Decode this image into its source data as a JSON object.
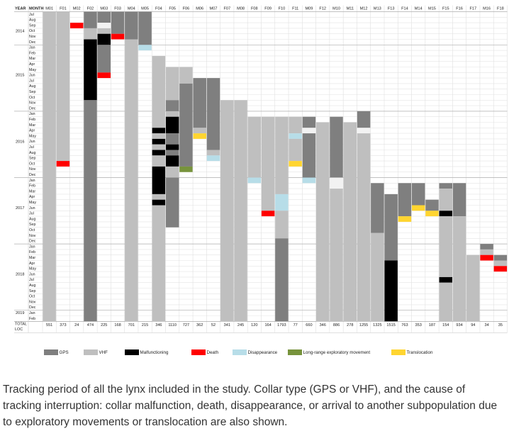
{
  "caption": "Tracking period of all the lynx included in the study. Collar type (GPS or VHF), and the cause of tracking interruption: collar malfunction, death, disappearance, or arrival to another subpopulation due to exploratory movements or translocation are also shown.",
  "chart_data": {
    "type": "table",
    "header": {
      "year": "YEAR",
      "month": "MONTH"
    },
    "animals": [
      "M01",
      "F01",
      "M02",
      "F02",
      "M03",
      "F03",
      "M04",
      "M05",
      "F04",
      "F05",
      "F06",
      "M06",
      "M07",
      "F07",
      "M08",
      "F08",
      "F09",
      "F10",
      "F11",
      "M09",
      "F12",
      "M10",
      "M11",
      "M12",
      "M13",
      "F13",
      "F14",
      "M14",
      "M15",
      "F15",
      "F16",
      "F17",
      "M16",
      "F18"
    ],
    "totals": [
      "551",
      "373",
      "24",
      "474",
      "225",
      "168",
      "701",
      "215",
      "346",
      "1110",
      "727",
      "362",
      "52",
      "341",
      "245",
      "120",
      "164",
      "1793",
      "77",
      "660",
      "346",
      "886",
      "278",
      "1255",
      "1325",
      "1515",
      "763",
      "353",
      "187",
      "154",
      "934",
      "94",
      "34",
      "35"
    ],
    "total_label": "TOTAL",
    "loc_label": "LOC",
    "months": [
      {
        "y": "",
        "m": "Jul"
      },
      {
        "y": "",
        "m": "Aug"
      },
      {
        "y": "",
        "m": "Sep"
      },
      {
        "y": "2014",
        "m": "Oct"
      },
      {
        "y": "",
        "m": "Nov"
      },
      {
        "y": "",
        "m": "Dec"
      },
      {
        "y": "",
        "m": "Jan"
      },
      {
        "y": "",
        "m": "Feb"
      },
      {
        "y": "",
        "m": "Mar"
      },
      {
        "y": "",
        "m": "Apr"
      },
      {
        "y": "",
        "m": "May"
      },
      {
        "y": "2015",
        "m": "Jun"
      },
      {
        "y": "",
        "m": "Jul"
      },
      {
        "y": "",
        "m": "Aug"
      },
      {
        "y": "",
        "m": "Sep"
      },
      {
        "y": "",
        "m": "Oct"
      },
      {
        "y": "",
        "m": "Nov"
      },
      {
        "y": "",
        "m": "Dec"
      },
      {
        "y": "",
        "m": "Jan"
      },
      {
        "y": "",
        "m": "Feb"
      },
      {
        "y": "",
        "m": "Mar"
      },
      {
        "y": "",
        "m": "Apr"
      },
      {
        "y": "",
        "m": "May"
      },
      {
        "y": "2016",
        "m": "Jun"
      },
      {
        "y": "",
        "m": "Jul"
      },
      {
        "y": "",
        "m": "Aug"
      },
      {
        "y": "",
        "m": "Sep"
      },
      {
        "y": "",
        "m": "Oct"
      },
      {
        "y": "",
        "m": "Nov"
      },
      {
        "y": "",
        "m": "Dec"
      },
      {
        "y": "",
        "m": "Jan"
      },
      {
        "y": "",
        "m": "Feb"
      },
      {
        "y": "",
        "m": "Mar"
      },
      {
        "y": "",
        "m": "Apr"
      },
      {
        "y": "",
        "m": "May"
      },
      {
        "y": "2017",
        "m": "Jun"
      },
      {
        "y": "",
        "m": "Jul"
      },
      {
        "y": "",
        "m": "Aug"
      },
      {
        "y": "",
        "m": "Sep"
      },
      {
        "y": "",
        "m": "Oct"
      },
      {
        "y": "",
        "m": "Nov"
      },
      {
        "y": "",
        "m": "Dec"
      },
      {
        "y": "",
        "m": "Jan"
      },
      {
        "y": "",
        "m": "Feb"
      },
      {
        "y": "",
        "m": "Mar"
      },
      {
        "y": "",
        "m": "Apr"
      },
      {
        "y": "",
        "m": "May"
      },
      {
        "y": "2018",
        "m": "Jun"
      },
      {
        "y": "",
        "m": "Jul"
      },
      {
        "y": "",
        "m": "Aug"
      },
      {
        "y": "",
        "m": "Sep"
      },
      {
        "y": "",
        "m": "Oct"
      },
      {
        "y": "",
        "m": "Nov"
      },
      {
        "y": "",
        "m": "Dec"
      },
      {
        "y": "2019",
        "m": "Jan"
      },
      {
        "y": "",
        "m": "Feb"
      }
    ],
    "year_rows": [
      {
        "year": "2014",
        "first": 0,
        "last": 5
      },
      {
        "year": "2015",
        "first": 6,
        "last": 17
      },
      {
        "year": "2016",
        "first": 18,
        "last": 29
      },
      {
        "year": "2017",
        "first": 30,
        "last": 41
      },
      {
        "year": "2018",
        "first": 42,
        "last": 53
      },
      {
        "year": "2019",
        "first": 54,
        "last": 55
      }
    ],
    "legend": [
      {
        "key": "gps",
        "label": "GPS"
      },
      {
        "key": "vhf",
        "label": "VHF"
      },
      {
        "key": "malf",
        "label": "Malfunctioning"
      },
      {
        "key": "death",
        "label": "Death"
      },
      {
        "key": "disap",
        "label": "Disappearance"
      },
      {
        "key": "explor",
        "label": "Long-range exploratory movement"
      },
      {
        "key": "transl",
        "label": "Translocation"
      }
    ],
    "colors": {
      "gps": "#7f7f7f",
      "vhf": "#bfbfbf",
      "malf": "#000000",
      "death": "#ff0000",
      "disap": "#b7dde8",
      "explor": "#77933c",
      "transl": "#ffd530",
      "white": "#f2f2f2"
    },
    "segments": [
      {
        "col": 0,
        "from": 0,
        "to": 55,
        "type": "vhf"
      },
      {
        "col": 1,
        "from": 0,
        "to": 26,
        "type": "vhf"
      },
      {
        "col": 1,
        "from": 27,
        "to": 27,
        "type": "death"
      },
      {
        "col": 2,
        "from": 2,
        "to": 2,
        "type": "death"
      },
      {
        "col": 3,
        "from": 0,
        "to": 2,
        "type": "gps"
      },
      {
        "col": 3,
        "from": 3,
        "to": 4,
        "type": "vhf"
      },
      {
        "col": 3,
        "from": 5,
        "to": 15,
        "type": "malf"
      },
      {
        "col": 3,
        "from": 16,
        "to": 55,
        "type": "gps"
      },
      {
        "col": 4,
        "from": 0,
        "to": 1,
        "type": "gps"
      },
      {
        "col": 4,
        "from": 2,
        "to": 2,
        "type": "white"
      },
      {
        "col": 4,
        "from": 3,
        "to": 3,
        "type": "vhf"
      },
      {
        "col": 4,
        "from": 4,
        "to": 5,
        "type": "malf"
      },
      {
        "col": 4,
        "from": 6,
        "to": 10,
        "type": "gps"
      },
      {
        "col": 4,
        "from": 11,
        "to": 11,
        "type": "death"
      },
      {
        "col": 5,
        "from": 0,
        "to": 3,
        "type": "gps"
      },
      {
        "col": 5,
        "from": 4,
        "to": 4,
        "type": "death"
      },
      {
        "col": 6,
        "from": 0,
        "to": 4,
        "type": "gps"
      },
      {
        "col": 6,
        "from": 5,
        "to": 55,
        "type": "vhf"
      },
      {
        "col": 7,
        "from": 0,
        "to": 5,
        "type": "gps"
      },
      {
        "col": 7,
        "from": 6,
        "to": 6,
        "type": "disap"
      },
      {
        "col": 8,
        "from": 8,
        "to": 20,
        "type": "vhf"
      },
      {
        "col": 8,
        "from": 21,
        "to": 21,
        "type": "malf"
      },
      {
        "col": 8,
        "from": 22,
        "to": 22,
        "type": "vhf"
      },
      {
        "col": 8,
        "from": 23,
        "to": 23,
        "type": "malf"
      },
      {
        "col": 8,
        "from": 24,
        "to": 24,
        "type": "vhf"
      },
      {
        "col": 8,
        "from": 25,
        "to": 25,
        "type": "malf"
      },
      {
        "col": 8,
        "from": 26,
        "to": 27,
        "type": "vhf"
      },
      {
        "col": 8,
        "from": 28,
        "to": 32,
        "type": "malf"
      },
      {
        "col": 8,
        "from": 33,
        "to": 33,
        "type": "vhf"
      },
      {
        "col": 8,
        "from": 34,
        "to": 34,
        "type": "malf"
      },
      {
        "col": 8,
        "from": 35,
        "to": 55,
        "type": "vhf"
      },
      {
        "col": 9,
        "from": 10,
        "to": 15,
        "type": "vhf"
      },
      {
        "col": 9,
        "from": 16,
        "to": 17,
        "type": "gps"
      },
      {
        "col": 9,
        "from": 18,
        "to": 18,
        "type": "vhf"
      },
      {
        "col": 9,
        "from": 19,
        "to": 21,
        "type": "malf"
      },
      {
        "col": 9,
        "from": 22,
        "to": 23,
        "type": "gps"
      },
      {
        "col": 9,
        "from": 24,
        "to": 24,
        "type": "malf"
      },
      {
        "col": 9,
        "from": 25,
        "to": 25,
        "type": "gps"
      },
      {
        "col": 9,
        "from": 26,
        "to": 27,
        "type": "malf"
      },
      {
        "col": 9,
        "from": 28,
        "to": 29,
        "type": "vhf"
      },
      {
        "col": 9,
        "from": 30,
        "to": 38,
        "type": "gps"
      },
      {
        "col": 10,
        "from": 10,
        "to": 12,
        "type": "vhf"
      },
      {
        "col": 10,
        "from": 13,
        "to": 27,
        "type": "gps"
      },
      {
        "col": 10,
        "from": 28,
        "to": 28,
        "type": "explor"
      },
      {
        "col": 11,
        "from": 12,
        "to": 20,
        "type": "gps"
      },
      {
        "col": 11,
        "from": 21,
        "to": 21,
        "type": "vhf"
      },
      {
        "col": 11,
        "from": 22,
        "to": 22,
        "type": "transl"
      },
      {
        "col": 12,
        "from": 12,
        "to": 24,
        "type": "gps"
      },
      {
        "col": 12,
        "from": 25,
        "to": 25,
        "type": "vhf"
      },
      {
        "col": 12,
        "from": 26,
        "to": 26,
        "type": "disap"
      },
      {
        "col": 13,
        "from": 16,
        "to": 55,
        "type": "vhf"
      },
      {
        "col": 14,
        "from": 16,
        "to": 55,
        "type": "vhf"
      },
      {
        "col": 15,
        "from": 19,
        "to": 29,
        "type": "vhf"
      },
      {
        "col": 15,
        "from": 30,
        "to": 30,
        "type": "disap"
      },
      {
        "col": 16,
        "from": 19,
        "to": 35,
        "type": "vhf"
      },
      {
        "col": 16,
        "from": 36,
        "to": 36,
        "type": "death"
      },
      {
        "col": 17,
        "from": 19,
        "to": 32,
        "type": "vhf"
      },
      {
        "col": 17,
        "from": 33,
        "to": 35,
        "type": "disap"
      },
      {
        "col": 17,
        "from": 36,
        "to": 40,
        "type": "vhf"
      },
      {
        "col": 17,
        "from": 41,
        "to": 55,
        "type": "gps"
      },
      {
        "col": 18,
        "from": 19,
        "to": 21,
        "type": "vhf"
      },
      {
        "col": 18,
        "from": 22,
        "to": 22,
        "type": "disap"
      },
      {
        "col": 18,
        "from": 23,
        "to": 26,
        "type": "vhf"
      },
      {
        "col": 18,
        "from": 27,
        "to": 27,
        "type": "transl"
      },
      {
        "col": 19,
        "from": 19,
        "to": 20,
        "type": "gps"
      },
      {
        "col": 19,
        "from": 21,
        "to": 21,
        "type": "white"
      },
      {
        "col": 19,
        "from": 22,
        "to": 29,
        "type": "gps"
      },
      {
        "col": 19,
        "from": 30,
        "to": 30,
        "type": "disap"
      },
      {
        "col": 20,
        "from": 20,
        "to": 55,
        "type": "vhf"
      },
      {
        "col": 21,
        "from": 19,
        "to": 29,
        "type": "gps"
      },
      {
        "col": 21,
        "from": 30,
        "to": 31,
        "type": "white"
      },
      {
        "col": 21,
        "from": 32,
        "to": 55,
        "type": "vhf"
      },
      {
        "col": 22,
        "from": 20,
        "to": 55,
        "type": "vhf"
      },
      {
        "col": 23,
        "from": 18,
        "to": 20,
        "type": "gps"
      },
      {
        "col": 23,
        "from": 21,
        "to": 21,
        "type": "white"
      },
      {
        "col": 23,
        "from": 22,
        "to": 55,
        "type": "vhf"
      },
      {
        "col": 24,
        "from": 31,
        "to": 39,
        "type": "gps"
      },
      {
        "col": 24,
        "from": 40,
        "to": 55,
        "type": "vhf"
      },
      {
        "col": 25,
        "from": 33,
        "to": 44,
        "type": "gps"
      },
      {
        "col": 25,
        "from": 45,
        "to": 55,
        "type": "malf"
      },
      {
        "col": 26,
        "from": 31,
        "to": 36,
        "type": "gps"
      },
      {
        "col": 26,
        "from": 37,
        "to": 37,
        "type": "transl"
      },
      {
        "col": 27,
        "from": 31,
        "to": 34,
        "type": "gps"
      },
      {
        "col": 27,
        "from": 35,
        "to": 35,
        "type": "transl"
      },
      {
        "col": 28,
        "from": 34,
        "to": 35,
        "type": "gps"
      },
      {
        "col": 28,
        "from": 36,
        "to": 36,
        "type": "transl"
      },
      {
        "col": 29,
        "from": 31,
        "to": 31,
        "type": "gps"
      },
      {
        "col": 29,
        "from": 32,
        "to": 35,
        "type": "vhf"
      },
      {
        "col": 29,
        "from": 36,
        "to": 36,
        "type": "malf"
      },
      {
        "col": 29,
        "from": 37,
        "to": 47,
        "type": "vhf"
      },
      {
        "col": 29,
        "from": 48,
        "to": 48,
        "type": "malf"
      },
      {
        "col": 29,
        "from": 49,
        "to": 55,
        "type": "vhf"
      },
      {
        "col": 30,
        "from": 31,
        "to": 36,
        "type": "gps"
      },
      {
        "col": 30,
        "from": 37,
        "to": 55,
        "type": "vhf"
      },
      {
        "col": 31,
        "from": 44,
        "to": 55,
        "type": "vhf"
      },
      {
        "col": 32,
        "from": 42,
        "to": 42,
        "type": "gps"
      },
      {
        "col": 32,
        "from": 43,
        "to": 43,
        "type": "vhf"
      },
      {
        "col": 32,
        "from": 44,
        "to": 44,
        "type": "death"
      },
      {
        "col": 33,
        "from": 44,
        "to": 44,
        "type": "gps"
      },
      {
        "col": 33,
        "from": 45,
        "to": 45,
        "type": "vhf"
      },
      {
        "col": 33,
        "from": 46,
        "to": 46,
        "type": "death"
      }
    ]
  }
}
